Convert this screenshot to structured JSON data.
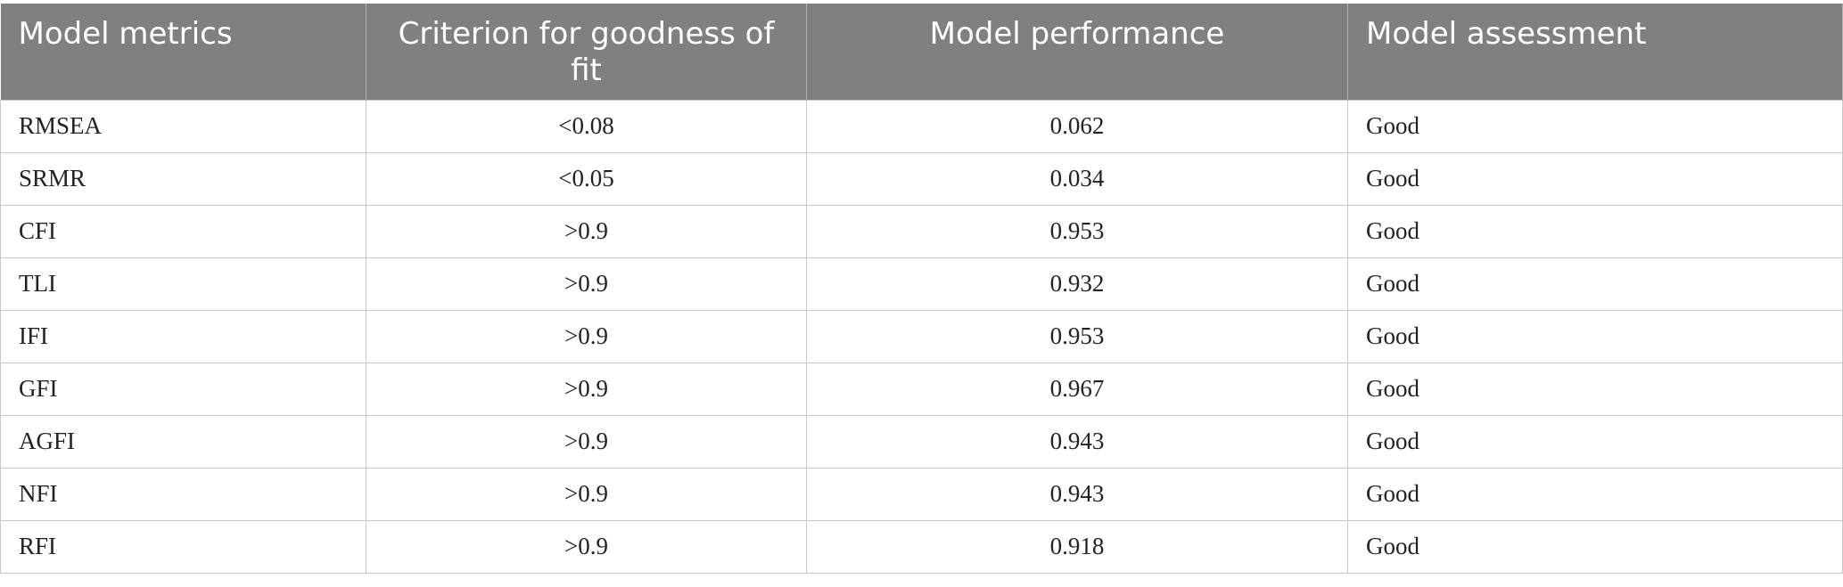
{
  "table": {
    "header": [
      "Model metrics",
      "Criterion for goodness of fit",
      "Model performance",
      "Model assessment"
    ],
    "rows": [
      [
        "RMSEA",
        "<0.08",
        "0.062",
        "Good"
      ],
      [
        "SRMR",
        "<0.05",
        "0.034",
        "Good"
      ],
      [
        "CFI",
        ">0.9",
        "0.953",
        "Good"
      ],
      [
        "TLI",
        ">0.9",
        "0.932",
        "Good"
      ],
      [
        "IFI",
        ">0.9",
        "0.953",
        "Good"
      ],
      [
        "GFI",
        ">0.9",
        "0.967",
        "Good"
      ],
      [
        "AGFI",
        ">0.9",
        "0.943",
        "Good"
      ],
      [
        "NFI",
        ">0.9",
        "0.943",
        "Good"
      ],
      [
        "RFI",
        ">0.9",
        "0.918",
        "Good"
      ]
    ]
  }
}
